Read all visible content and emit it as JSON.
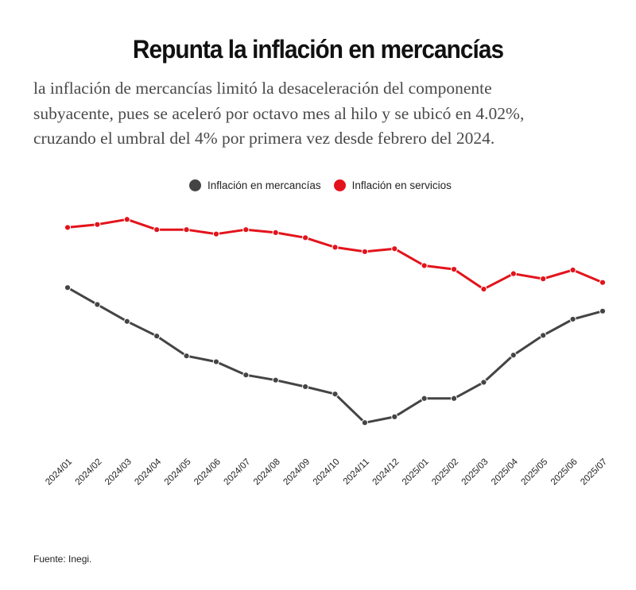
{
  "header": {
    "title": "Repunta la inflación en mercancías",
    "subtitle": "la inflación de mercancías limitó la desaceleración del componente\nsubyacente, pues se aceleró por  octavo mes al hilo y se ubicó en 4.02%,\ncruzando el umbral del 4% por primera vez desde febrero del 2024."
  },
  "legend": [
    {
      "label": "Inflación en mercancías",
      "color": "#444444"
    },
    {
      "label": "Inflación en servicios",
      "color": "#e3131b"
    }
  ],
  "footer": {
    "source": "Fuente: Inegi."
  },
  "chart_data": {
    "type": "line",
    "title": "Repunta la inflación en mercancías",
    "xlabel": "",
    "ylabel": "",
    "x": [
      "2024/01",
      "2024/02",
      "2024/03",
      "2024/04",
      "2024/05",
      "2024/06",
      "2024/07",
      "2024/08",
      "2024/09",
      "2024/10",
      "2024/11",
      "2024/12",
      "2025/01",
      "2025/02",
      "2025/03",
      "2025/04",
      "2025/05",
      "2025/06",
      "2025/07"
    ],
    "series": [
      {
        "name": "Inflación en mercancías",
        "color": "#444444",
        "values": [
          4.34,
          4.11,
          3.88,
          3.68,
          3.41,
          3.33,
          3.15,
          3.08,
          2.99,
          2.89,
          2.5,
          2.58,
          2.83,
          2.83,
          3.05,
          3.42,
          3.69,
          3.91,
          4.02
        ]
      },
      {
        "name": "Inflación en servicios",
        "color": "#e3131b",
        "values": [
          5.16,
          5.2,
          5.27,
          5.13,
          5.13,
          5.07,
          5.13,
          5.09,
          5.02,
          4.89,
          4.83,
          4.87,
          4.64,
          4.59,
          4.32,
          4.53,
          4.46,
          4.58,
          4.41
        ]
      }
    ],
    "ylim": [
      2.2,
      5.5
    ],
    "grid": false,
    "legend_position": "top-center",
    "y_axis_visible": false
  }
}
